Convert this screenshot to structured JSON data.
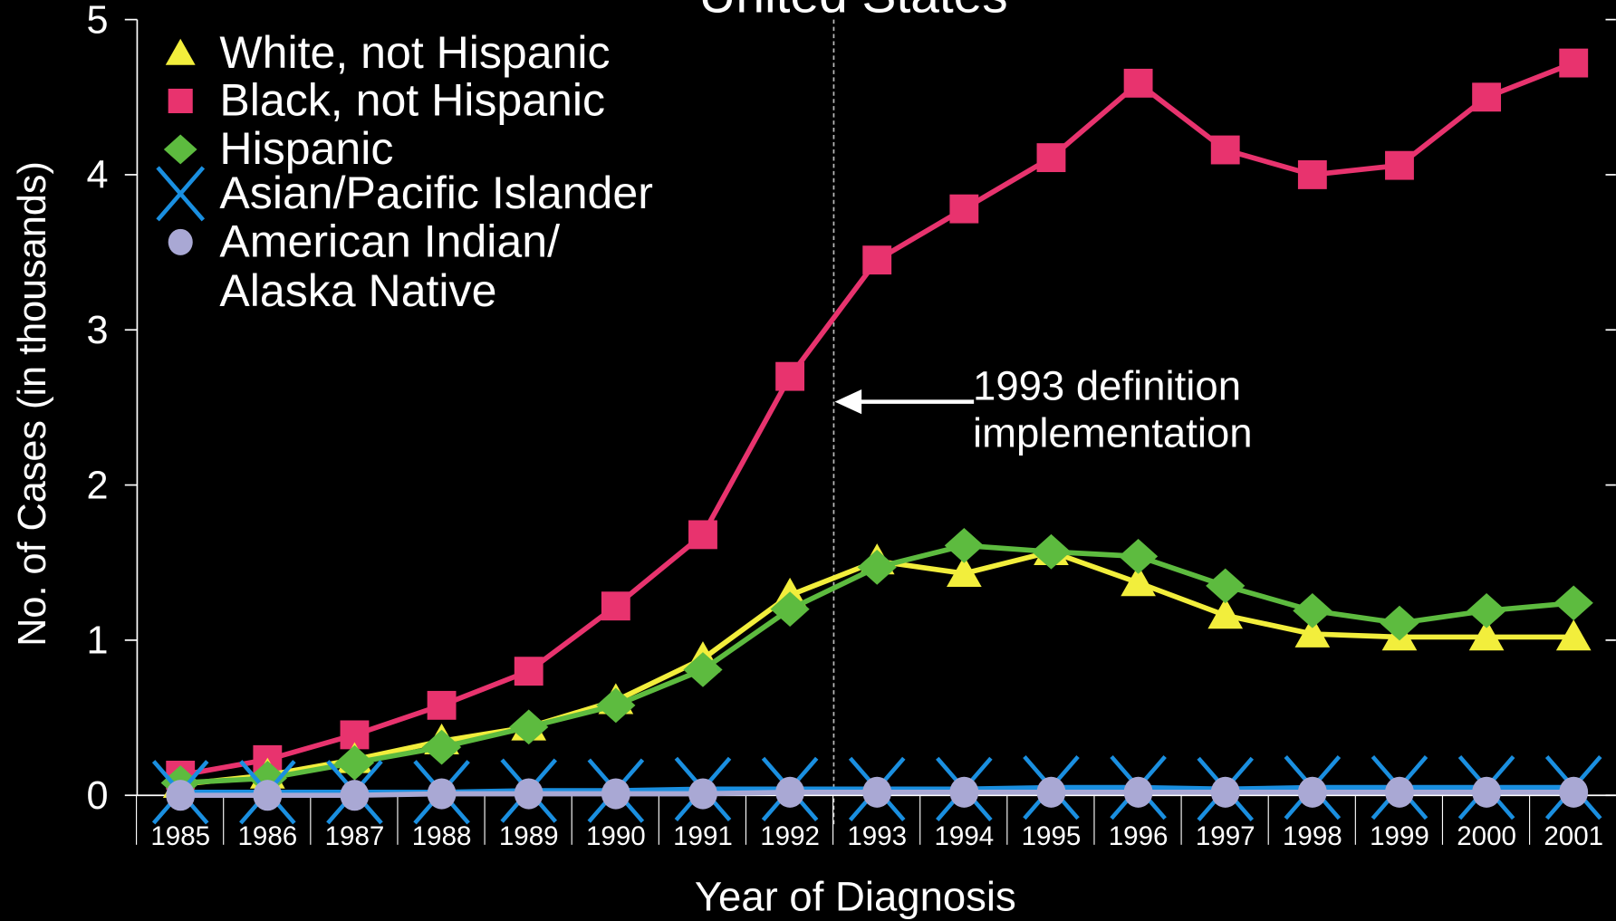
{
  "chart_data": {
    "type": "line",
    "title": "United States",
    "y_label": "No. of Cases (in thousands)",
    "x_label": "Year of Diagnosis",
    "annotation": [
      "1993 definition",
      "implementation"
    ],
    "categories": [
      "1985",
      "1986",
      "1987",
      "1988",
      "1989",
      "1990",
      "1991",
      "1992",
      "1993",
      "1994",
      "1995",
      "1996",
      "1997",
      "1998",
      "1999",
      "2000",
      "2001"
    ],
    "ylim": [
      0,
      5
    ],
    "yticks": [
      0,
      1,
      2,
      3,
      4,
      5
    ],
    "legend": "upper left",
    "series": [
      {
        "name": "White, not Hispanic",
        "color": "#f2ee3c",
        "marker": "triangle",
        "values": [
          0.07,
          0.13,
          0.23,
          0.35,
          0.44,
          0.61,
          0.88,
          1.29,
          1.51,
          1.43,
          1.57,
          1.37,
          1.16,
          1.04,
          1.02,
          1.02,
          1.02
        ]
      },
      {
        "name": "Black, not Hispanic",
        "color": "#e8336e",
        "marker": "square",
        "values": [
          0.13,
          0.23,
          0.39,
          0.58,
          0.8,
          1.22,
          1.68,
          2.7,
          3.45,
          3.78,
          4.11,
          4.59,
          4.16,
          4.0,
          4.06,
          4.5,
          4.72
        ]
      },
      {
        "name": "Hispanic",
        "color": "#5dbb3f",
        "marker": "diamond",
        "values": [
          0.08,
          0.11,
          0.21,
          0.31,
          0.44,
          0.58,
          0.81,
          1.2,
          1.47,
          1.61,
          1.57,
          1.54,
          1.35,
          1.19,
          1.11,
          1.19,
          1.24
        ]
      },
      {
        "name": "Asian/Pacific Islander",
        "color": "#1a8fe0",
        "marker": "x",
        "values": [
          0.02,
          0.02,
          0.02,
          0.02,
          0.03,
          0.03,
          0.04,
          0.04,
          0.04,
          0.04,
          0.05,
          0.05,
          0.04,
          0.05,
          0.05,
          0.05,
          0.05
        ]
      },
      {
        "name": "American Indian/ Alaska Native",
        "color": "#a9a8d4",
        "marker": "circle",
        "values": [
          0,
          0,
          0,
          0.01,
          0.01,
          0.01,
          0.01,
          0.02,
          0.02,
          0.02,
          0.02,
          0.02,
          0.02,
          0.02,
          0.02,
          0.02,
          0.02
        ]
      }
    ]
  }
}
